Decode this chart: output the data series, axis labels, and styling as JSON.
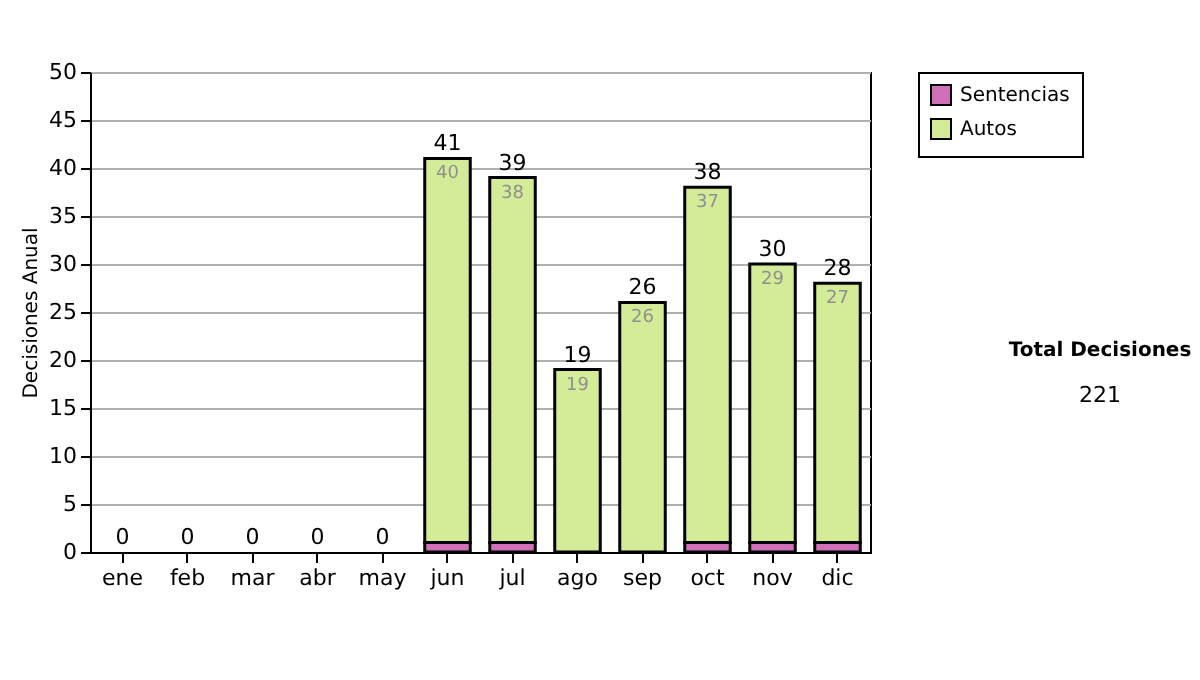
{
  "chart_data": {
    "type": "bar",
    "stacked": true,
    "ylabel": "Decisiones Anual",
    "categories": [
      "ene",
      "feb",
      "mar",
      "abr",
      "may",
      "jun",
      "jul",
      "ago",
      "sep",
      "oct",
      "nov",
      "dic"
    ],
    "series": [
      {
        "name": "Sentencias",
        "color": "#d070b8",
        "values": [
          0,
          0,
          0,
          0,
          0,
          1,
          1,
          0,
          0,
          1,
          1,
          1
        ]
      },
      {
        "name": "Autos",
        "color": "#d4ec98",
        "values": [
          0,
          0,
          0,
          0,
          0,
          40,
          38,
          19,
          26,
          37,
          29,
          27
        ],
        "value_labels": [
          null,
          null,
          null,
          null,
          null,
          "40",
          "38",
          "19",
          "26",
          "37",
          "29",
          "27"
        ]
      }
    ],
    "totals": [
      "0",
      "0",
      "0",
      "0",
      "0",
      "41",
      "39",
      "19",
      "26",
      "38",
      "30",
      "28"
    ],
    "ylim": [
      0,
      50
    ],
    "yticks": [
      0,
      5,
      10,
      15,
      20,
      25,
      30,
      35,
      40,
      45,
      50
    ],
    "grid": "y",
    "legend": "right",
    "annotations": [
      "Total Decisiones",
      "221"
    ]
  }
}
